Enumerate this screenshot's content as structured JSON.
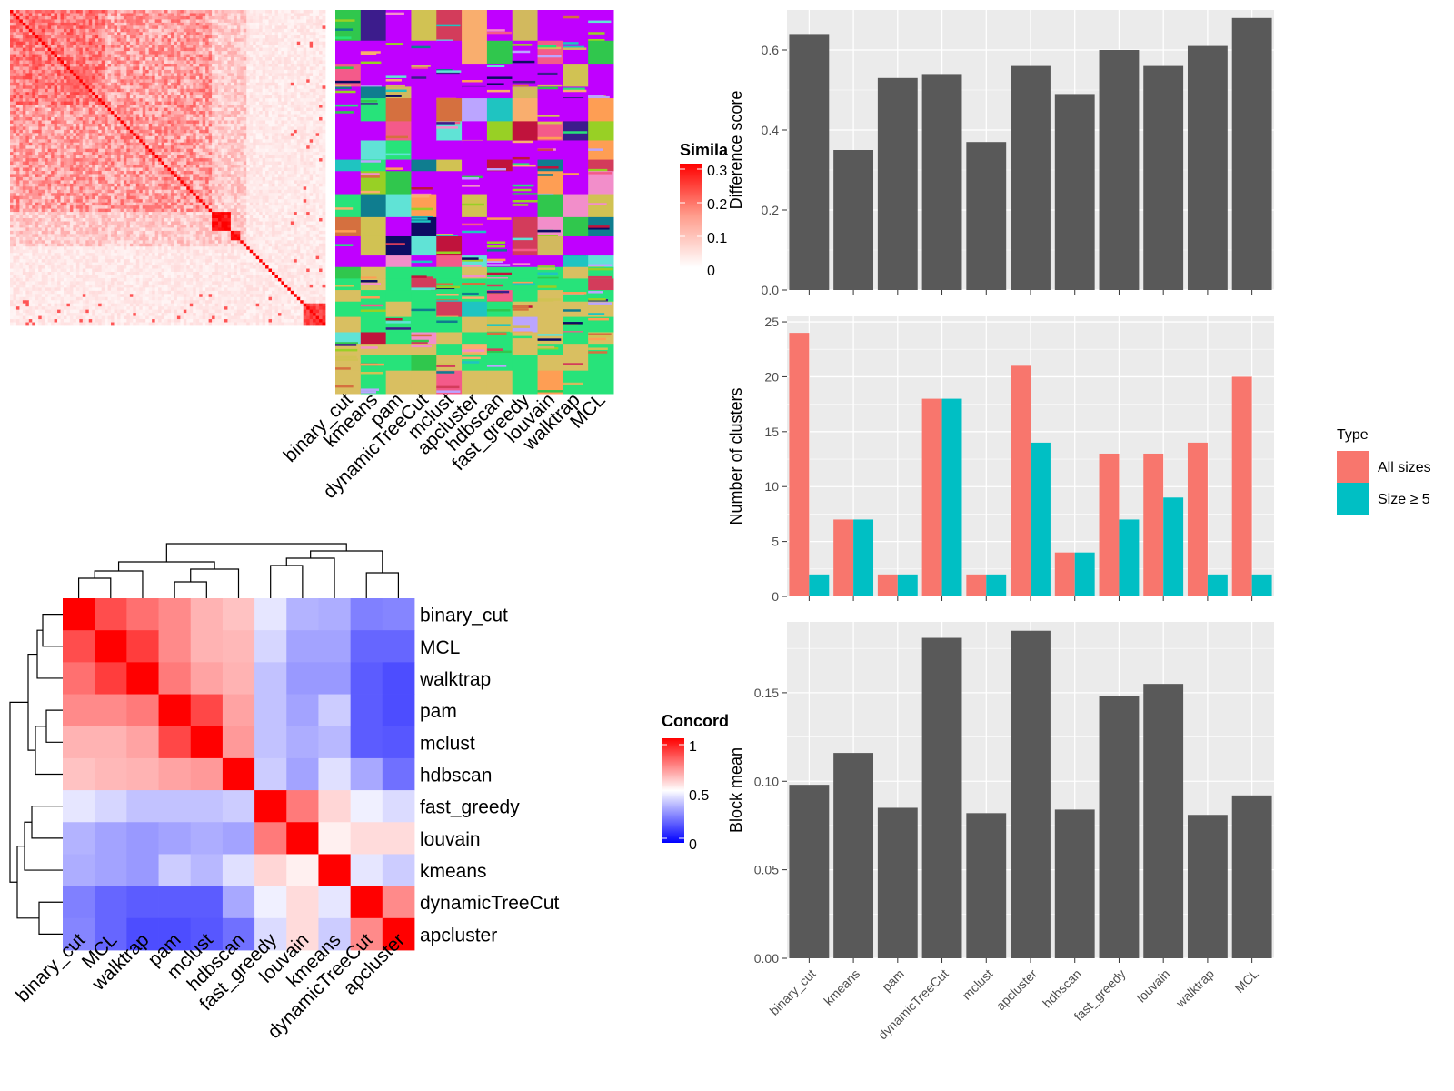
{
  "methods": [
    "binary_cut",
    "kmeans",
    "pam",
    "dynamicTreeCut",
    "mclust",
    "apcluster",
    "hdbscan",
    "fast_greedy",
    "louvain",
    "walktrap",
    "MCL"
  ],
  "colors": {
    "bar": "#595959",
    "all_sizes": "#F8766D",
    "size5": "#00BFC4",
    "panel_bg": "#EBEBEB",
    "grid": "#FFFFFF"
  },
  "legends": {
    "similarity": {
      "title": "Simila",
      "ticks": [
        "0.3",
        "0.2",
        "0.1",
        "0"
      ]
    },
    "concordance": {
      "title": "Concord",
      "ticks": [
        "1",
        "0.5",
        "0"
      ]
    },
    "type": {
      "title": "Type",
      "entries": [
        "All sizes",
        "Size ≥ 5"
      ]
    }
  },
  "chart_data": [
    {
      "id": "similarity_heatmap",
      "type": "heatmap",
      "value_range": [
        0,
        0.3
      ],
      "description_blocks": [
        {
          "range": [
            0.18,
            0.26
          ],
          "mean": 0.2
        },
        {
          "range": [
            0.64,
            0.7
          ],
          "mean": 0.3
        },
        {
          "range": [
            0.7,
            0.73
          ],
          "mean": 0.28
        },
        {
          "range": [
            0.93,
            1.0
          ],
          "mean": 0.25
        }
      ]
    },
    {
      "id": "cluster_membership",
      "type": "heatmap",
      "columns": [
        "binary_cut",
        "kmeans",
        "pam",
        "dynamicTreeCut",
        "mclust",
        "apcluster",
        "hdbscan",
        "fast_greedy",
        "louvain",
        "walktrap",
        "MCL"
      ]
    },
    {
      "id": "difference_score",
      "type": "bar",
      "categories": [
        "binary_cut",
        "kmeans",
        "pam",
        "dynamicTreeCut",
        "mclust",
        "apcluster",
        "hdbscan",
        "fast_greedy",
        "louvain",
        "walktrap",
        "MCL"
      ],
      "values": [
        0.64,
        0.35,
        0.53,
        0.54,
        0.37,
        0.56,
        0.49,
        0.6,
        0.56,
        0.61,
        0.68
      ],
      "ylabel": "Difference score",
      "ylim": [
        0,
        0.7
      ],
      "yticks": [
        "0.0",
        "0.2",
        "0.4",
        "0.6"
      ]
    },
    {
      "id": "number_of_clusters",
      "type": "bar",
      "categories": [
        "binary_cut",
        "kmeans",
        "pam",
        "dynamicTreeCut",
        "mclust",
        "apcluster",
        "hdbscan",
        "fast_greedy",
        "louvain",
        "walktrap",
        "MCL"
      ],
      "series": [
        {
          "name": "All sizes",
          "values": [
            24,
            7,
            2,
            18,
            2,
            21,
            4,
            13,
            13,
            14,
            20
          ]
        },
        {
          "name": "Size ≥ 5",
          "values": [
            2,
            7,
            2,
            18,
            2,
            14,
            4,
            7,
            9,
            2,
            2
          ]
        }
      ],
      "ylabel": "Number of clusters",
      "ylim": [
        0,
        25.5
      ],
      "yticks": [
        "0",
        "5",
        "10",
        "15",
        "20",
        "25"
      ],
      "legend": "right"
    },
    {
      "id": "block_mean",
      "type": "bar",
      "categories": [
        "binary_cut",
        "kmeans",
        "pam",
        "dynamicTreeCut",
        "mclust",
        "apcluster",
        "hdbscan",
        "fast_greedy",
        "louvain",
        "walktrap",
        "MCL"
      ],
      "values": [
        0.098,
        0.116,
        0.085,
        0.181,
        0.082,
        0.185,
        0.084,
        0.148,
        0.155,
        0.081,
        0.092
      ],
      "ylabel": "Block mean",
      "ylim": [
        0,
        0.19
      ],
      "yticks": [
        "0.00",
        "0.05",
        "0.10",
        "0.15"
      ]
    },
    {
      "id": "concordance_heatmap",
      "type": "heatmap",
      "rows": [
        "binary_cut",
        "MCL",
        "walktrap",
        "pam",
        "mclust",
        "hdbscan",
        "fast_greedy",
        "louvain",
        "kmeans",
        "dynamicTreeCut",
        "apcluster"
      ],
      "columns": [
        "binary_cut",
        "MCL",
        "walktrap",
        "pam",
        "mclust",
        "hdbscan",
        "fast_greedy",
        "louvain",
        "kmeans",
        "dynamicTreeCut",
        "apcluster"
      ],
      "value_range": [
        0,
        1
      ],
      "values": [
        [
          1.0,
          0.85,
          0.78,
          0.73,
          0.65,
          0.62,
          0.45,
          0.35,
          0.34,
          0.25,
          0.26
        ],
        [
          0.85,
          1.0,
          0.88,
          0.73,
          0.65,
          0.64,
          0.42,
          0.32,
          0.32,
          0.2,
          0.2
        ],
        [
          0.78,
          0.88,
          1.0,
          0.76,
          0.68,
          0.65,
          0.38,
          0.3,
          0.3,
          0.18,
          0.15
        ],
        [
          0.73,
          0.73,
          0.76,
          1.0,
          0.86,
          0.68,
          0.38,
          0.32,
          0.4,
          0.18,
          0.15
        ],
        [
          0.65,
          0.65,
          0.68,
          0.86,
          1.0,
          0.7,
          0.38,
          0.34,
          0.36,
          0.18,
          0.17
        ],
        [
          0.62,
          0.64,
          0.65,
          0.68,
          0.7,
          1.0,
          0.4,
          0.32,
          0.44,
          0.33,
          0.22
        ],
        [
          0.45,
          0.42,
          0.38,
          0.38,
          0.38,
          0.4,
          1.0,
          0.76,
          0.58,
          0.47,
          0.43
        ],
        [
          0.35,
          0.32,
          0.3,
          0.32,
          0.34,
          0.32,
          0.76,
          1.0,
          0.53,
          0.57,
          0.57
        ],
        [
          0.34,
          0.32,
          0.3,
          0.4,
          0.36,
          0.44,
          0.58,
          0.53,
          1.0,
          0.45,
          0.4
        ],
        [
          0.25,
          0.2,
          0.18,
          0.18,
          0.18,
          0.33,
          0.47,
          0.57,
          0.45,
          1.0,
          0.73
        ],
        [
          0.26,
          0.2,
          0.15,
          0.15,
          0.17,
          0.22,
          0.43,
          0.57,
          0.4,
          0.73,
          1.0
        ]
      ]
    }
  ]
}
